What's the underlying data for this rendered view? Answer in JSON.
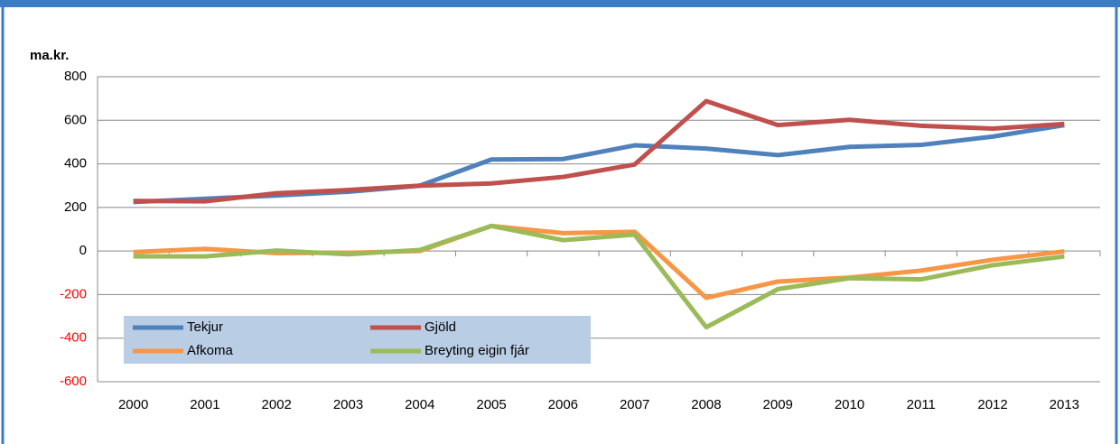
{
  "chart_data": {
    "type": "line",
    "y_label": "ma.kr.",
    "categories": [
      "2000",
      "2001",
      "2002",
      "2003",
      "2004",
      "2005",
      "2006",
      "2007",
      "2008",
      "2009",
      "2010",
      "2011",
      "2012",
      "2013"
    ],
    "series": [
      {
        "name": "Tekjur",
        "color": "#4f81bd",
        "values": [
          225,
          240,
          255,
          272,
          300,
          420,
          422,
          485,
          470,
          440,
          478,
          487,
          525,
          578
        ]
      },
      {
        "name": "Gjöld",
        "color": "#c0504d",
        "values": [
          230,
          228,
          265,
          280,
          300,
          310,
          340,
          397,
          688,
          578,
          602,
          575,
          562,
          583
        ]
      },
      {
        "name": "Afkoma",
        "color": "#f79646",
        "values": [
          -5,
          10,
          -10,
          -8,
          0,
          115,
          82,
          88,
          -215,
          -140,
          -122,
          -90,
          -40,
          -2
        ]
      },
      {
        "name": "Breyting eigin fjár",
        "color": "#9bbb59",
        "values": [
          -25,
          -25,
          2,
          -15,
          5,
          115,
          50,
          75,
          -350,
          -175,
          -125,
          -130,
          -65,
          -25
        ]
      }
    ],
    "ylim": [
      -600,
      800
    ],
    "yticks": [
      -600,
      -400,
      -200,
      0,
      200,
      400,
      600,
      800
    ],
    "grid": true,
    "negative_tick_color": "#ff0000",
    "legend_position": "bottom-left"
  }
}
